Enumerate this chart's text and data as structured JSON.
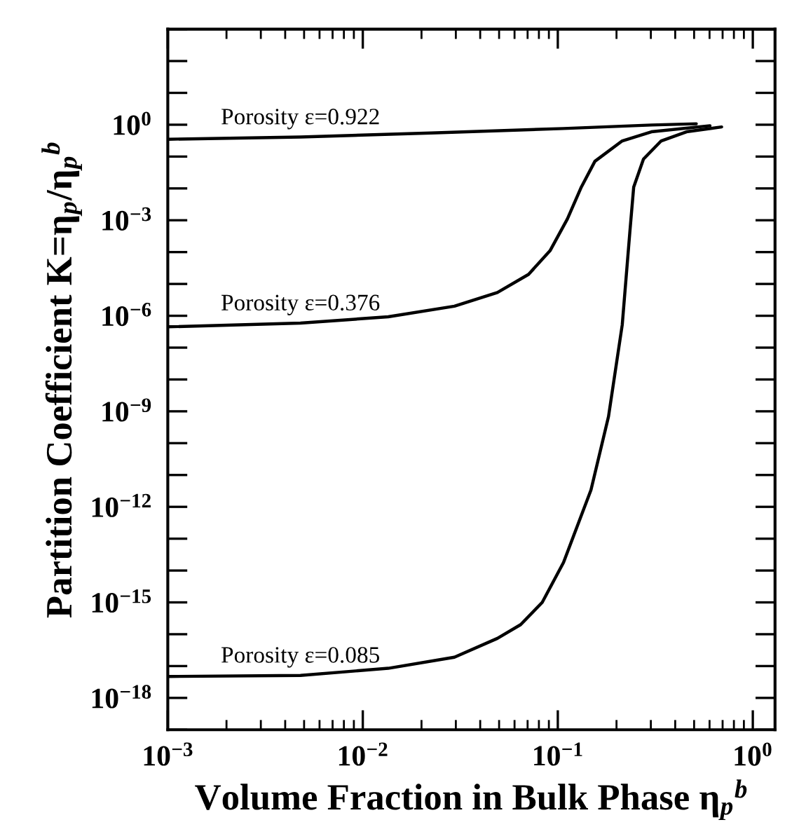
{
  "chart_data": {
    "type": "line",
    "xlabel": "Volume Fraction in Bulk Phase η$_{p}$$^{b}$",
    "ylabel": "Partition Coefficient K=η$_{p}$/η$_{p}$$^{b}$",
    "log": "xy",
    "grid": false,
    "legend": false,
    "marker": "none",
    "line_style": "solid",
    "xlim": [
      0.001,
      1.3
    ],
    "ylim": [
      1e-19,
      1000
    ],
    "xticks": [
      {
        "value": 0.001,
        "label": "10$^{−3}$"
      },
      {
        "value": 0.01,
        "label": "10$^{−2}$"
      },
      {
        "value": 0.1,
        "label": "10$^{−1}$"
      },
      {
        "value": 1,
        "label": "10$^{0}$"
      }
    ],
    "yticks": [
      {
        "value": 1e-19,
        "label": null
      },
      {
        "value": 1e-18,
        "label": "10$^{−18}$"
      },
      {
        "value": 1e-17,
        "label": null
      },
      {
        "value": 1e-16,
        "label": null
      },
      {
        "value": 1e-15,
        "label": "10$^{−15}$"
      },
      {
        "value": 1e-14,
        "label": null
      },
      {
        "value": 1e-13,
        "label": null
      },
      {
        "value": 1e-12,
        "label": "10$^{−12}$"
      },
      {
        "value": 1e-11,
        "label": null
      },
      {
        "value": 1e-10,
        "label": null
      },
      {
        "value": 1e-09,
        "label": "10$^{−9}$"
      },
      {
        "value": 1e-08,
        "label": null
      },
      {
        "value": 1e-07,
        "label": null
      },
      {
        "value": 1e-06,
        "label": "10$^{−6}$"
      },
      {
        "value": 1e-05,
        "label": null
      },
      {
        "value": 0.0001,
        "label": null
      },
      {
        "value": 0.001,
        "label": "10$^{−3}$"
      },
      {
        "value": 0.01,
        "label": null
      },
      {
        "value": 0.1,
        "label": null
      },
      {
        "value": 1,
        "label": "10$^{0}$"
      },
      {
        "value": 10,
        "label": null
      },
      {
        "value": 100,
        "label": null
      },
      {
        "value": 1000,
        "label": null
      }
    ],
    "series": [
      {
        "name": "Porosity ε=0.922",
        "color": "#000000",
        "x": [
          0.001,
          0.00479,
          0.0224,
          0.107,
          0.302,
          0.513
        ],
        "values": [
          0.35,
          0.41,
          0.55,
          0.76,
          0.98,
          1.07
        ]
      },
      {
        "name": "Porosity ε=0.376",
        "color": "#000000",
        "x": [
          0.001,
          0.00479,
          0.0135,
          0.0295,
          0.049,
          0.0708,
          0.0912,
          0.112,
          0.132,
          0.155,
          0.214,
          0.302,
          0.603
        ],
        "values": [
          4.5e-07,
          5.9e-07,
          9.3e-07,
          2e-06,
          5.4e-06,
          2e-05,
          0.00011,
          0.0011,
          0.011,
          0.071,
          0.31,
          0.6,
          0.93
        ]
      },
      {
        "name": "Porosity ε=0.085",
        "color": "#000000",
        "x": [
          0.001,
          0.00479,
          0.0135,
          0.0295,
          0.049,
          0.0645,
          0.0832,
          0.107,
          0.148,
          0.182,
          0.214,
          0.234,
          0.245,
          0.275,
          0.339,
          0.457,
          0.692
        ],
        "values": [
          4.7e-18,
          5.1e-18,
          8.5e-18,
          1.9e-17,
          7.4e-17,
          2e-16,
          1e-15,
          1.8e-14,
          3.4e-12,
          6.9e-10,
          5.2e-07,
          0.00041,
          0.011,
          0.083,
          0.31,
          0.6,
          0.85
        ]
      }
    ]
  }
}
